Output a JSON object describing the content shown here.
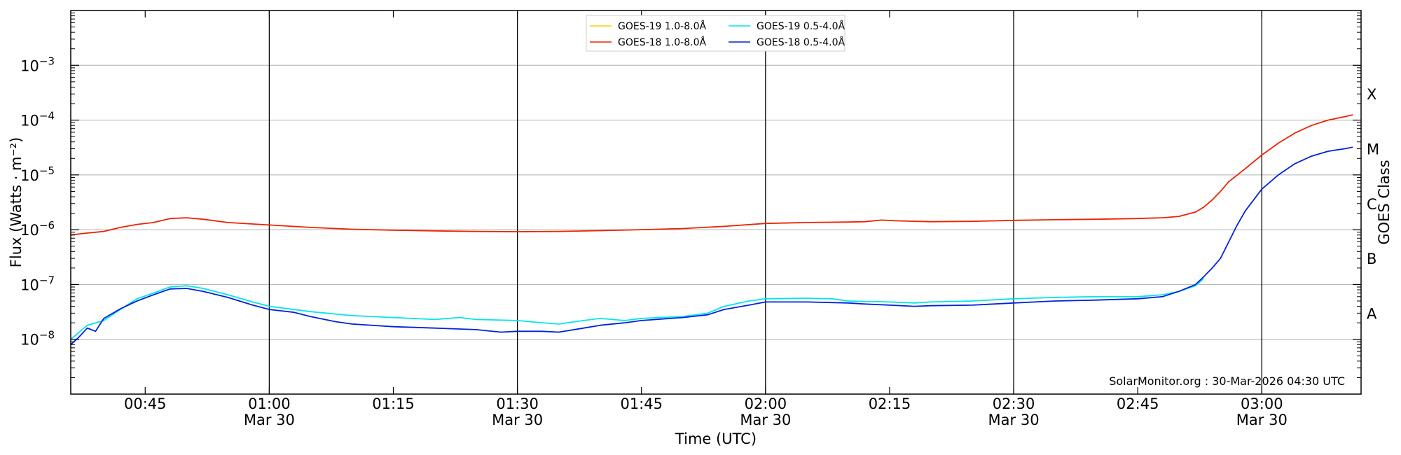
{
  "chart_data": {
    "type": "line",
    "title": "",
    "xlabel": "Time (UTC)",
    "ylabel": "Flux (Watts · m⁻²)",
    "right_label": "GOES Class",
    "credit": "SolarMonitor.org : 30-Mar-2026 04:30 UTC",
    "y_scale": "log",
    "ylim": [
      1e-09,
      0.01
    ],
    "xlim": [
      "00:36",
      "03:12"
    ],
    "grid": "horizontal at decades",
    "legend_position": "top-center",
    "x_ticks": [
      {
        "time": "00:45",
        "label": "00:45",
        "sub": ""
      },
      {
        "time": "01:00",
        "label": "01:00",
        "sub": "Mar 30"
      },
      {
        "time": "01:15",
        "label": "01:15",
        "sub": ""
      },
      {
        "time": "01:30",
        "label": "01:30",
        "sub": "Mar 30"
      },
      {
        "time": "01:45",
        "label": "01:45",
        "sub": ""
      },
      {
        "time": "02:00",
        "label": "02:00",
        "sub": "Mar 30"
      },
      {
        "time": "02:15",
        "label": "02:15",
        "sub": ""
      },
      {
        "time": "02:30",
        "label": "02:30",
        "sub": "Mar 30"
      },
      {
        "time": "02:45",
        "label": "02:45",
        "sub": ""
      },
      {
        "time": "03:00",
        "label": "03:00",
        "sub": "Mar 30"
      }
    ],
    "vertical_lines": [
      "01:00",
      "01:30",
      "02:00",
      "02:30",
      "03:00"
    ],
    "y_ticks": [
      {
        "value": 1e-08,
        "label_base": "10",
        "label_exp": "−8"
      },
      {
        "value": 1e-07,
        "label_base": "10",
        "label_exp": "−7"
      },
      {
        "value": 1e-06,
        "label_base": "10",
        "label_exp": "−6"
      },
      {
        "value": 1e-05,
        "label_base": "10",
        "label_exp": "−5"
      },
      {
        "value": 0.0001,
        "label_base": "10",
        "label_exp": "−4"
      },
      {
        "value": 0.001,
        "label_base": "10",
        "label_exp": "−3"
      }
    ],
    "goes_classes": [
      {
        "label": "A",
        "value": 3e-08
      },
      {
        "label": "B",
        "value": 3e-07
      },
      {
        "label": "C",
        "value": 3e-06
      },
      {
        "label": "M",
        "value": 3e-05
      },
      {
        "label": "X",
        "value": 0.0003
      }
    ],
    "series": [
      {
        "name": "GOES-19 1.0-8.0Å",
        "color": "#ffcc00",
        "points": []
      },
      {
        "name": "GOES-19 0.5-4.0Å",
        "color": "#00e5ee",
        "points": [
          [
            "00:36",
            1e-08
          ],
          [
            "00:38",
            1.8e-08
          ],
          [
            "00:40",
            2.2e-08
          ],
          [
            "00:42",
            3.5e-08
          ],
          [
            "00:44",
            5.5e-08
          ],
          [
            "00:46",
            7e-08
          ],
          [
            "00:48",
            9e-08
          ],
          [
            "00:50",
            9.5e-08
          ],
          [
            "00:52",
            8.5e-08
          ],
          [
            "00:55",
            6.5e-08
          ],
          [
            "00:58",
            4.8e-08
          ],
          [
            "01:00",
            4e-08
          ],
          [
            "01:05",
            3.2e-08
          ],
          [
            "01:10",
            2.7e-08
          ],
          [
            "01:15",
            2.5e-08
          ],
          [
            "01:20",
            2.3e-08
          ],
          [
            "01:23",
            2.5e-08
          ],
          [
            "01:25",
            2.3e-08
          ],
          [
            "01:30",
            2.2e-08
          ],
          [
            "01:33",
            2e-08
          ],
          [
            "01:35",
            1.9e-08
          ],
          [
            "01:38",
            2.2e-08
          ],
          [
            "01:40",
            2.4e-08
          ],
          [
            "01:43",
            2.2e-08
          ],
          [
            "01:45",
            2.4e-08
          ],
          [
            "01:50",
            2.6e-08
          ],
          [
            "01:53",
            3e-08
          ],
          [
            "01:55",
            4e-08
          ],
          [
            "01:58",
            5e-08
          ],
          [
            "02:00",
            5.5e-08
          ],
          [
            "02:05",
            5.6e-08
          ],
          [
            "02:08",
            5.5e-08
          ],
          [
            "02:10",
            5e-08
          ],
          [
            "02:15",
            4.8e-08
          ],
          [
            "02:18",
            4.6e-08
          ],
          [
            "02:20",
            4.8e-08
          ],
          [
            "02:25",
            5e-08
          ],
          [
            "02:30",
            5.5e-08
          ],
          [
            "02:35",
            5.8e-08
          ],
          [
            "02:40",
            6e-08
          ],
          [
            "02:45",
            6e-08
          ],
          [
            "02:48",
            6.5e-08
          ],
          [
            "02:50",
            7.5e-08
          ],
          [
            "02:52",
            9.5e-08
          ],
          [
            "02:53",
            1.3e-07
          ]
        ]
      },
      {
        "name": "GOES-18 1.0-8.0Å",
        "color": "#ee2200",
        "points": [
          [
            "00:36",
            8e-07
          ],
          [
            "00:38",
            8.7e-07
          ],
          [
            "00:40",
            9.3e-07
          ],
          [
            "00:42",
            1.1e-06
          ],
          [
            "00:44",
            1.25e-06
          ],
          [
            "00:46",
            1.35e-06
          ],
          [
            "00:48",
            1.6e-06
          ],
          [
            "00:50",
            1.65e-06
          ],
          [
            "00:52",
            1.55e-06
          ],
          [
            "00:55",
            1.35e-06
          ],
          [
            "01:00",
            1.22e-06
          ],
          [
            "01:05",
            1.1e-06
          ],
          [
            "01:10",
            1.02e-06
          ],
          [
            "01:15",
            9.8e-07
          ],
          [
            "01:20",
            9.5e-07
          ],
          [
            "01:25",
            9.3e-07
          ],
          [
            "01:30",
            9.2e-07
          ],
          [
            "01:35",
            9.3e-07
          ],
          [
            "01:40",
            9.6e-07
          ],
          [
            "01:45",
            1e-06
          ],
          [
            "01:50",
            1.05e-06
          ],
          [
            "01:55",
            1.15e-06
          ],
          [
            "02:00",
            1.3e-06
          ],
          [
            "02:05",
            1.35e-06
          ],
          [
            "02:10",
            1.38e-06
          ],
          [
            "02:12",
            1.4e-06
          ],
          [
            "02:14",
            1.5e-06
          ],
          [
            "02:16",
            1.45e-06
          ],
          [
            "02:20",
            1.4e-06
          ],
          [
            "02:25",
            1.42e-06
          ],
          [
            "02:30",
            1.48e-06
          ],
          [
            "02:35",
            1.52e-06
          ],
          [
            "02:40",
            1.55e-06
          ],
          [
            "02:45",
            1.6e-06
          ],
          [
            "02:48",
            1.65e-06
          ],
          [
            "02:50",
            1.75e-06
          ],
          [
            "02:52",
            2.1e-06
          ],
          [
            "02:53",
            2.6e-06
          ],
          [
            "02:54",
            3.5e-06
          ],
          [
            "02:55",
            5e-06
          ],
          [
            "02:56",
            7.5e-06
          ],
          [
            "02:58",
            1.3e-05
          ],
          [
            "03:00",
            2.3e-05
          ],
          [
            "03:02",
            3.8e-05
          ],
          [
            "03:04",
            5.8e-05
          ],
          [
            "03:06",
            8e-05
          ],
          [
            "03:08",
            0.0001
          ],
          [
            "03:10",
            0.000115
          ],
          [
            "03:11",
            0.000125
          ]
        ]
      },
      {
        "name": "GOES-18 0.5-4.0Å",
        "color": "#0022dd",
        "points": [
          [
            "00:36",
            8e-09
          ],
          [
            "00:37",
            1.1e-08
          ],
          [
            "00:38",
            1.6e-08
          ],
          [
            "00:39",
            1.4e-08
          ],
          [
            "00:40",
            2.4e-08
          ],
          [
            "00:42",
            3.6e-08
          ],
          [
            "00:44",
            5e-08
          ],
          [
            "00:46",
            6.5e-08
          ],
          [
            "00:48",
            8.3e-08
          ],
          [
            "00:50",
            8.5e-08
          ],
          [
            "00:52",
            7.5e-08
          ],
          [
            "00:55",
            5.8e-08
          ],
          [
            "00:58",
            4.2e-08
          ],
          [
            "01:00",
            3.5e-08
          ],
          [
            "01:03",
            3.1e-08
          ],
          [
            "01:05",
            2.6e-08
          ],
          [
            "01:08",
            2.1e-08
          ],
          [
            "01:10",
            1.9e-08
          ],
          [
            "01:15",
            1.7e-08
          ],
          [
            "01:20",
            1.6e-08
          ],
          [
            "01:25",
            1.5e-08
          ],
          [
            "01:28",
            1.35e-08
          ],
          [
            "01:30",
            1.4e-08
          ],
          [
            "01:33",
            1.4e-08
          ],
          [
            "01:35",
            1.35e-08
          ],
          [
            "01:38",
            1.6e-08
          ],
          [
            "01:40",
            1.8e-08
          ],
          [
            "01:43",
            2e-08
          ],
          [
            "01:45",
            2.2e-08
          ],
          [
            "01:50",
            2.5e-08
          ],
          [
            "01:53",
            2.8e-08
          ],
          [
            "01:55",
            3.5e-08
          ],
          [
            "01:58",
            4.2e-08
          ],
          [
            "02:00",
            4.8e-08
          ],
          [
            "02:05",
            4.8e-08
          ],
          [
            "02:10",
            4.6e-08
          ],
          [
            "02:12",
            4.4e-08
          ],
          [
            "02:15",
            4.2e-08
          ],
          [
            "02:18",
            4e-08
          ],
          [
            "02:20",
            4.1e-08
          ],
          [
            "02:25",
            4.2e-08
          ],
          [
            "02:30",
            4.6e-08
          ],
          [
            "02:35",
            5e-08
          ],
          [
            "02:40",
            5.2e-08
          ],
          [
            "02:45",
            5.5e-08
          ],
          [
            "02:48",
            6e-08
          ],
          [
            "02:50",
            7.5e-08
          ],
          [
            "02:52",
            1e-07
          ],
          [
            "02:53",
            1.4e-07
          ],
          [
            "02:54",
            2e-07
          ],
          [
            "02:55",
            3e-07
          ],
          [
            "02:56",
            6e-07
          ],
          [
            "02:57",
            1.2e-06
          ],
          [
            "02:58",
            2.2e-06
          ],
          [
            "03:00",
            5.5e-06
          ],
          [
            "03:02",
            1e-05
          ],
          [
            "03:04",
            1.6e-05
          ],
          [
            "03:06",
            2.2e-05
          ],
          [
            "03:08",
            2.7e-05
          ],
          [
            "03:10",
            3e-05
          ],
          [
            "03:11",
            3.2e-05
          ]
        ]
      }
    ]
  }
}
